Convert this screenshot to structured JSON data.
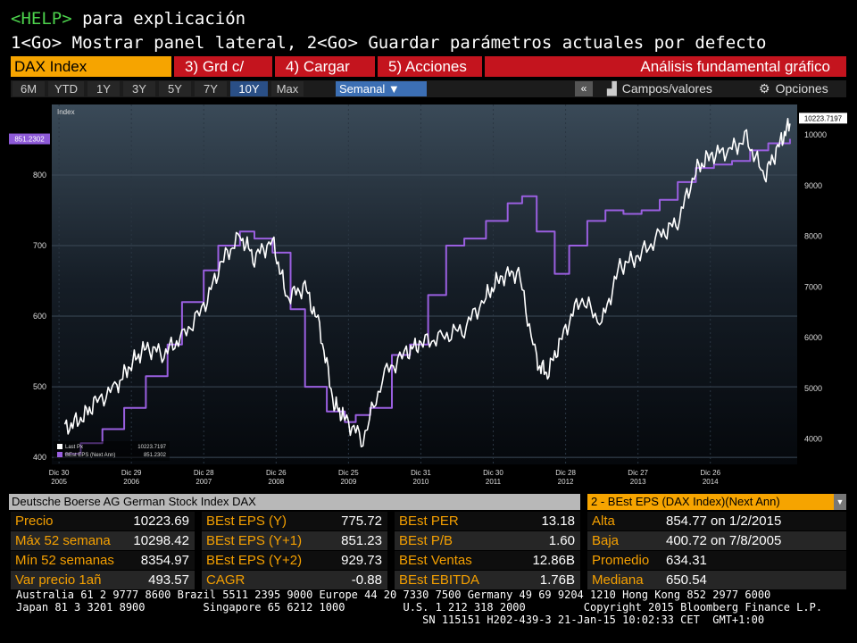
{
  "command_lines": {
    "help_key": "<HELP>",
    "help_text": " para explicación",
    "line2": "1<Go> Mostrar panel lateral, 2<Go> Guardar parámetros actuales por defecto"
  },
  "toolbar": {
    "ticker": "DAX Index",
    "grd": "3) Grd c/",
    "cargar": "4) Cargar",
    "acciones": "5) Acciones",
    "analisis": "Análisis fundamental gráfico"
  },
  "periods": [
    "6M",
    "YTD",
    "1Y",
    "3Y",
    "5Y",
    "7Y",
    "10Y",
    "Max"
  ],
  "selected_period": "10Y",
  "frequency": "Semanal ▼",
  "collapse_label": "«",
  "campos_label": "Campos/valores",
  "opciones_label": "Opciones",
  "chart_data": {
    "type": "line",
    "title": "",
    "ylabel_left": "Index",
    "left_axis": {
      "range": [
        390,
        900
      ],
      "ticks": [
        400,
        500,
        600,
        700,
        800
      ]
    },
    "right_axis": {
      "range": [
        3500,
        10600
      ],
      "ticks": [
        4000,
        5000,
        6000,
        7000,
        8000,
        9000,
        10000
      ]
    },
    "x_ticks": [
      {
        "d": "Dic 30",
        "y": "2005"
      },
      {
        "d": "Dic 29",
        "y": "2006"
      },
      {
        "d": "Dic 28",
        "y": "2007"
      },
      {
        "d": "Dic 26",
        "y": "2008"
      },
      {
        "d": "Dic 25",
        "y": "2009"
      },
      {
        "d": "Dic 31",
        "y": "2010"
      },
      {
        "d": "Dic 30",
        "y": "2011"
      },
      {
        "d": "Dic 28",
        "y": "2012"
      },
      {
        "d": "Dic 27",
        "y": "2013"
      },
      {
        "d": "Dic 26",
        "y": "2014"
      }
    ],
    "left_last_label": "851.2302",
    "right_last_label": "10223.7197",
    "grid": true,
    "legend_position": "bottom-left",
    "series": [
      {
        "name": "Last Px",
        "last": "10223.7197",
        "axis": "right",
        "color": "#ffffff",
        "x": [
          2005.08,
          2005.3,
          2005.5,
          2005.8,
          2006.0,
          2006.2,
          2006.45,
          2006.7,
          2007.0,
          2007.25,
          2007.5,
          2007.7,
          2007.95,
          2008.15,
          2008.4,
          2008.6,
          2008.8,
          2008.95,
          2009.2,
          2009.5,
          2009.8,
          2010.0,
          2010.3,
          2010.6,
          2010.9,
          2011.1,
          2011.35,
          2011.6,
          2011.75,
          2011.95,
          2012.2,
          2012.5,
          2012.75,
          2013.0,
          2013.3,
          2013.55,
          2013.8,
          2014.0,
          2014.25,
          2014.5,
          2014.75,
          2014.95,
          2015.1
        ],
        "values": [
          4200,
          4400,
          4700,
          5050,
          5500,
          5800,
          5700,
          6000,
          6600,
          7500,
          8000,
          7600,
          7900,
          6800,
          7000,
          6200,
          4700,
          4400,
          4000,
          5300,
          5700,
          5900,
          6000,
          6200,
          6800,
          7200,
          7300,
          5500,
          5300,
          6000,
          6800,
          6300,
          7400,
          7600,
          8000,
          8300,
          9300,
          9600,
          9700,
          9900,
          9200,
          9800,
          10223.7197
        ]
      },
      {
        "name": "BEst EPS (Next Ann)",
        "last": "851.2302",
        "axis": "left",
        "color": "#9a5fe0",
        "x": [
          2005.08,
          2005.3,
          2005.6,
          2005.9,
          2006.2,
          2006.5,
          2006.7,
          2007.0,
          2007.2,
          2007.5,
          2007.7,
          2007.95,
          2008.2,
          2008.4,
          2008.7,
          2008.95,
          2009.1,
          2009.3,
          2009.6,
          2009.85,
          2010.1,
          2010.35,
          2010.6,
          2010.9,
          2011.2,
          2011.4,
          2011.6,
          2011.85,
          2012.05,
          2012.3,
          2012.55,
          2012.8,
          2013.05,
          2013.3,
          2013.55,
          2013.8,
          2014.05,
          2014.3,
          2014.55,
          2014.8,
          2015.1
        ],
        "values": [
          405,
          420,
          440,
          470,
          515,
          560,
          620,
          665,
          700,
          720,
          710,
          690,
          610,
          500,
          465,
          450,
          460,
          470,
          545,
          560,
          630,
          700,
          710,
          735,
          760,
          770,
          720,
          660,
          700,
          735,
          750,
          745,
          750,
          765,
          790,
          810,
          815,
          820,
          835,
          845,
          851.2302
        ]
      }
    ]
  },
  "info_bar": "Deutsche Boerse AG German Stock Index DAX",
  "dropdown": {
    "label": "2 - BEst EPS (DAX Index)(Next Ann)",
    "arrow": "▼"
  },
  "stats": [
    [
      {
        "l": "Precio",
        "v": "10223.69"
      },
      {
        "l": "BEst EPS (Y)",
        "v": "775.72"
      },
      {
        "l": "BEst PER",
        "v": "13.18"
      },
      {
        "l": "Alta",
        "v": "854.77 on 1/2/2015"
      }
    ],
    [
      {
        "l": "Máx 52 semana",
        "v": "10298.42"
      },
      {
        "l": "BEst EPS (Y+1)",
        "v": "851.23"
      },
      {
        "l": "BEst P/B",
        "v": "1.60"
      },
      {
        "l": "Baja",
        "v": "400.72 on 7/8/2005"
      }
    ],
    [
      {
        "l": "Mín 52 semanas",
        "v": "8354.97"
      },
      {
        "l": "BEst EPS (Y+2)",
        "v": "929.73"
      },
      {
        "l": "BEst Ventas",
        "v": "12.86B"
      },
      {
        "l": "Promedio",
        "v": "634.31"
      }
    ],
    [
      {
        "l": "Var precio 1añ",
        "v": "493.57"
      },
      {
        "l": "CAGR",
        "v": "-0.88"
      },
      {
        "l": "BEst EBITDA",
        "v": "1.76B"
      },
      {
        "l": "Mediana",
        "v": "650.54"
      }
    ]
  ],
  "footer": {
    "line1": "Australia 61 2 9777 8600 Brazil 5511 2395 9000 Europe 44 20 7330 7500 Germany 49 69 9204 1210 Hong Kong 852 2977 6000",
    "line2": "Japan 81 3 3201 8900         Singapore 65 6212 1000         U.S. 1 212 318 2000         Copyright 2015 Bloomberg Finance L.P.",
    "line3": "                                                               SN 115151 H202-439-3 21-Jan-15 10:02:33 CET  GMT+1:00"
  }
}
